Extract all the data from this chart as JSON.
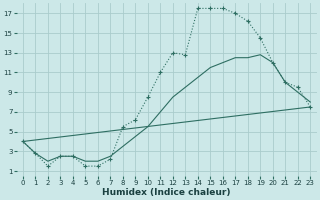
{
  "xlabel": "Humidex (Indice chaleur)",
  "bg_color": "#cce8e8",
  "grid_color": "#aacccc",
  "line_color": "#2e6e62",
  "xlim": [
    -0.5,
    23.5
  ],
  "ylim": [
    0.5,
    18.0
  ],
  "xticks": [
    0,
    1,
    2,
    3,
    4,
    5,
    6,
    7,
    8,
    9,
    10,
    11,
    12,
    13,
    14,
    15,
    16,
    17,
    18,
    19,
    20,
    21,
    22,
    23
  ],
  "yticks": [
    1,
    3,
    5,
    7,
    9,
    11,
    13,
    15,
    17
  ],
  "line1_x": [
    0,
    1,
    2,
    3,
    4,
    5,
    6,
    7,
    8,
    9,
    10,
    11,
    12,
    13,
    14,
    15,
    16,
    17,
    18,
    19,
    20,
    21,
    22,
    23
  ],
  "line1_y": [
    4.0,
    2.8,
    1.5,
    2.5,
    2.5,
    1.5,
    1.5,
    2.2,
    5.5,
    6.2,
    8.5,
    11.0,
    13.0,
    12.8,
    17.5,
    17.5,
    17.5,
    17.0,
    16.2,
    14.5,
    12.0,
    10.0,
    9.5,
    7.5
  ],
  "line2_x": [
    0,
    23
  ],
  "line2_y": [
    4.0,
    7.5
  ],
  "line3_x": [
    0,
    1,
    2,
    3,
    4,
    5,
    6,
    7,
    8,
    9,
    10,
    11,
    12,
    13,
    14,
    15,
    16,
    17,
    18,
    19,
    20,
    21,
    22,
    23
  ],
  "line3_y": [
    4.0,
    2.8,
    2.0,
    2.5,
    2.5,
    2.0,
    2.0,
    2.5,
    3.5,
    4.5,
    5.5,
    7.0,
    8.5,
    9.5,
    10.5,
    11.5,
    12.0,
    12.5,
    12.5,
    12.8,
    12.0,
    10.0,
    9.0,
    8.0
  ]
}
